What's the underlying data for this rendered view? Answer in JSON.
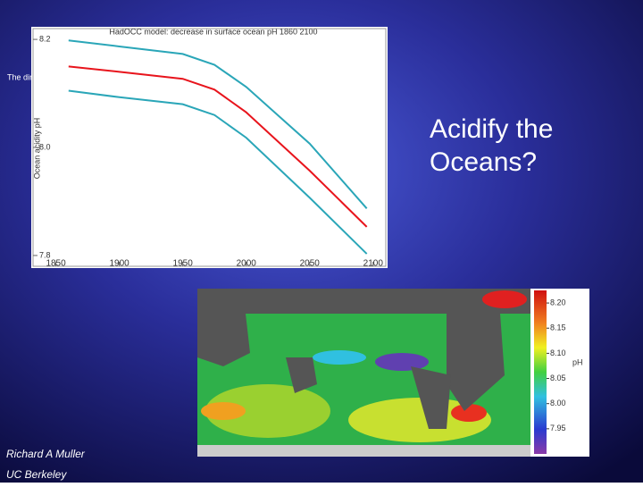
{
  "slide": {
    "hidden_text": "The dir",
    "heading": "Acidify the Oceans?",
    "author": "Richard A Muller",
    "affiliation": "UC Berkeley"
  },
  "chart_data": {
    "type": "line",
    "title": "HadOCC model: decrease in surface ocean pH 1860 2100",
    "y_label": "Ocean acidity pH",
    "x": [
      1860,
      1900,
      1950,
      1975,
      2000,
      2050,
      2095
    ],
    "series": [
      {
        "color": "#2aa6b8",
        "values": [
          8.198,
          8.187,
          8.173,
          8.153,
          8.112,
          8.007,
          7.887
        ]
      },
      {
        "color": "#e8141c",
        "values": [
          8.15,
          8.14,
          8.127,
          8.107,
          8.065,
          7.957,
          7.853
        ]
      },
      {
        "color": "#2aa6b8",
        "values": [
          8.105,
          8.093,
          8.08,
          8.06,
          8.018,
          7.907,
          7.803
        ]
      }
    ],
    "xlim": [
      1832,
      2110
    ],
    "ylim": [
      7.78,
      8.22
    ],
    "xticks": [
      1850,
      1900,
      1950,
      2000,
      2050,
      2100
    ],
    "yticks": [
      8.2,
      {
        "value": 8.0,
        "label": "8.0"
      },
      7.8
    ]
  },
  "colorbar": {
    "label": "pH",
    "lim": [
      7.9,
      8.225
    ],
    "ticks": [
      {
        "value": 8.2,
        "label": "8.20"
      },
      8.15,
      {
        "value": 8.1,
        "label": "8.10"
      },
      8.05,
      {
        "value": 8.0,
        "label": "8.00"
      },
      7.95
    ]
  }
}
